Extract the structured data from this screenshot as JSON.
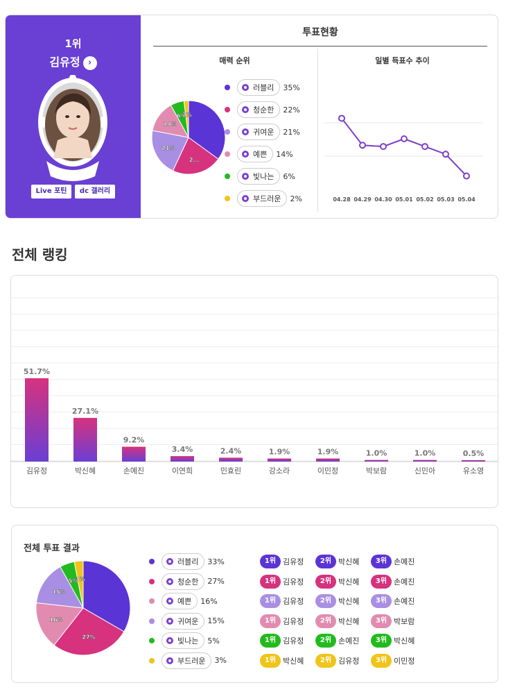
{
  "colors": {
    "love": "#5b34d6",
    "pure": "#d6327e",
    "cute": "#a98fe3",
    "pretty": "#e28bb0",
    "shine": "#22bb1f",
    "soft": "#f0c419",
    "panel": "#6a3fd4"
  },
  "winner": {
    "rank": "1위",
    "name": "김유정",
    "arrow_icon": "chevron-right-icon",
    "buttons": [
      "Live 포틴",
      "dc 갤러리"
    ]
  },
  "vote_status": {
    "title": "투표현황",
    "charm_title": "매력 순위",
    "daily_title": "일별 득표수 추이",
    "charm_legend": [
      {
        "label": "러블리",
        "pct": "35%"
      },
      {
        "label": "청순한",
        "pct": "22%"
      },
      {
        "label": "귀여운",
        "pct": "21%"
      },
      {
        "label": "예쁜",
        "pct": "14%"
      },
      {
        "label": "빛나는",
        "pct": "6%"
      },
      {
        "label": "부드러운",
        "pct": "2%"
      }
    ],
    "charm_pie_labels": [
      "2...",
      "21%",
      "14%",
      "6%",
      "2%"
    ],
    "daily_dates": [
      "04.28",
      "04.29",
      "04.30",
      "05.01",
      "05.02",
      "05.03",
      "05.04"
    ]
  },
  "ranking": {
    "heading": "전체 랭킹"
  },
  "results": {
    "title": "전체 투표 결과",
    "legend": [
      {
        "label": "러블리",
        "pct": "33%"
      },
      {
        "label": "청순한",
        "pct": "27%"
      },
      {
        "label": "예쁜",
        "pct": "16%"
      },
      {
        "label": "귀여운",
        "pct": "15%"
      },
      {
        "label": "빛나는",
        "pct": "5%"
      },
      {
        "label": "부드러운",
        "pct": "3%"
      }
    ],
    "pie_labels": [
      "27%",
      "16%",
      "15%",
      "5%",
      "3%"
    ],
    "rank_rows": [
      [
        "김유정",
        "박신혜",
        "손예진"
      ],
      [
        "김유정",
        "박신혜",
        "손예진"
      ],
      [
        "김유정",
        "박신혜",
        "손예진"
      ],
      [
        "김유정",
        "박신혜",
        "박보람"
      ],
      [
        "김유정",
        "손예진",
        "박신혜"
      ],
      [
        "박신혜",
        "김유정",
        "이민정"
      ]
    ],
    "rank_badges": [
      "1위",
      "2위",
      "3위"
    ]
  },
  "chart_data": [
    {
      "type": "pie",
      "title": "매력 순위",
      "categories": [
        "러블리",
        "청순한",
        "귀여운",
        "예쁜",
        "빛나는",
        "부드러운"
      ],
      "values": [
        35,
        22,
        21,
        14,
        6,
        2
      ]
    },
    {
      "type": "line",
      "title": "일별 득표수 추이",
      "x": [
        "04.28",
        "04.29",
        "04.30",
        "05.01",
        "05.02",
        "05.03",
        "05.04"
      ],
      "values": [
        85,
        64,
        63,
        69,
        63,
        57,
        40
      ],
      "ylim": [
        30,
        95
      ],
      "grid": true
    },
    {
      "type": "bar",
      "categories": [
        "김유정",
        "박신혜",
        "손예진",
        "이연희",
        "민효린",
        "강소라",
        "이민정",
        "박보람",
        "신민아",
        "유소영"
      ],
      "values": [
        51.7,
        27.1,
        9.2,
        3.4,
        2.4,
        1.9,
        1.9,
        1.0,
        1.0,
        0.5
      ],
      "labels": [
        "51.7%",
        "27.1%",
        "9.2%",
        "3.4%",
        "2.4%",
        "1.9%",
        "1.9%",
        "1.0%",
        "1.0%",
        "0.5%"
      ],
      "ylim": [
        0,
        100
      ],
      "grid": true
    },
    {
      "type": "pie",
      "title": "전체 투표 결과",
      "categories": [
        "러블리",
        "청순한",
        "예쁜",
        "귀여운",
        "빛나는",
        "부드러운"
      ],
      "values": [
        33,
        27,
        16,
        15,
        5,
        3
      ]
    }
  ]
}
